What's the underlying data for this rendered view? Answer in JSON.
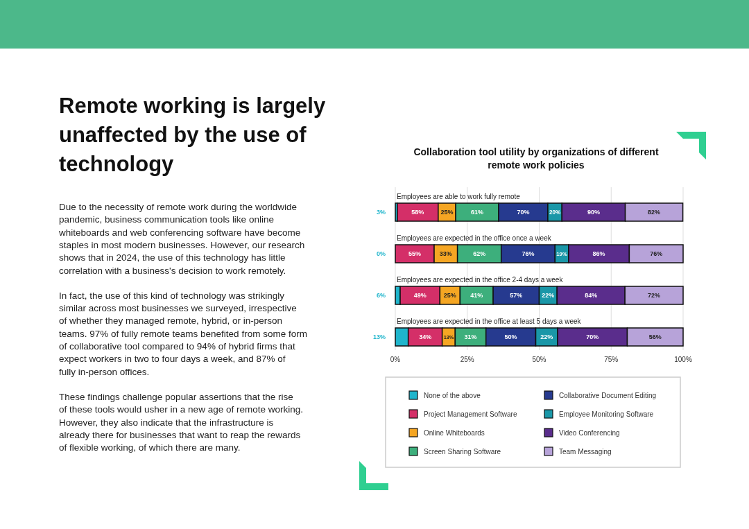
{
  "chart_data": {
    "type": "bar",
    "orientation": "horizontal",
    "stacked": true,
    "title": "Collaboration tool utility by organizations of different remote work policies",
    "categories": [
      "Employees are able to work fully remote",
      "Employees are expected in the office once a week",
      "Employees are expected in the office 2-4 days a week",
      "Employees are expected in the office at least 5 days a week"
    ],
    "series": [
      {
        "name": "None of the above",
        "color": "#1fb5cc",
        "values": [
          0.7,
          0,
          1.7,
          4.5
        ]
      },
      {
        "name": "Project Management Software",
        "color": "#d42f68",
        "values": [
          14.2,
          13.5,
          13.8,
          11.8
        ]
      },
      {
        "name": "Online Whiteboards",
        "color": "#f5a623",
        "values": [
          6.1,
          8.1,
          7.0,
          4.5
        ]
      },
      {
        "name": "Screen Sharing Software",
        "color": "#3daf7c",
        "values": [
          14.9,
          15.2,
          11.5,
          10.7
        ]
      },
      {
        "name": "Collaborative Document Editing",
        "color": "#263a8f",
        "values": [
          17.1,
          18.7,
          16.0,
          17.3
        ]
      },
      {
        "name": "Employee Monitoring Software",
        "color": "#1a97a8",
        "values": [
          4.9,
          4.7,
          6.2,
          7.6
        ]
      },
      {
        "name": "Video Conferencing",
        "color": "#5a2d8c",
        "values": [
          22.0,
          21.1,
          23.6,
          24.2
        ]
      },
      {
        "name": "Team Messaging",
        "color": "#b7a3d9",
        "values": [
          20.0,
          18.7,
          20.2,
          19.4
        ]
      }
    ],
    "xlim": [
      0,
      100
    ],
    "xticks": [
      {
        "value": 0,
        "label": "0%"
      },
      {
        "value": 25,
        "label": "25%"
      },
      {
        "value": 50,
        "label": "50%"
      },
      {
        "value": 75,
        "label": "75%"
      },
      {
        "value": 100,
        "label": "100%"
      }
    ],
    "grid": "x",
    "legend": "bottom",
    "annotations": [
      "Remote working is largely unaffected by the use of technology",
      "Due to the necessity of remote work during the worldwide pandemic, business communication tools like online whiteboards and web conferencing software have become staples in most modern businesses. However, our research shows that in 2024, the use of this technology has little correlation with a business's decision to work remotely.",
      "In fact, the use of this kind of technology was strikingly similar across most businesses we surveyed, irrespective of whether they managed remote, hybrid, or in-person teams. 97% of fully remote teams benefited from some form of collaborative tool compared to 94% of hybrid firms that expect workers in two to four days a week, and 87% of fully in-person offices.",
      "These findings challenge popular assertions that the rise of these tools would usher in a new age of remote working. However, they also indicate that the infrastructure is already there for businesses that want to reap the rewards of flexible working, of which there are many.",
      "3%",
      "58%",
      "25%",
      "61%",
      "70%",
      "20%",
      "90%",
      "82%",
      "0%",
      "55%",
      "33%",
      "62%",
      "76%",
      "19%",
      "86%",
      "76%",
      "6%",
      "49%",
      "25%",
      "41%",
      "57%",
      "22%",
      "84%",
      "72%",
      "13%",
      "34%",
      "13%",
      "31%",
      "50%",
      "22%",
      "70%",
      "56%"
    ]
  }
}
